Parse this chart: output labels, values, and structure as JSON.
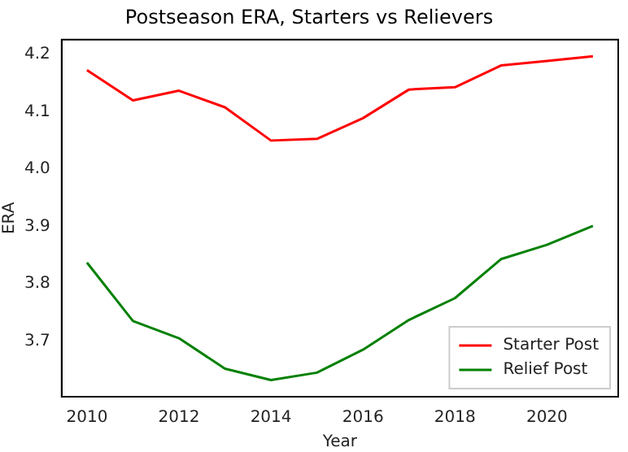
{
  "chart_data": {
    "type": "line",
    "title": "Postseason ERA, Starters vs Relievers",
    "xlabel": "Year",
    "ylabel": "ERA",
    "x": [
      2010,
      2011,
      2012,
      2013,
      2014,
      2015,
      2016,
      2017,
      2018,
      2019,
      2020,
      2021
    ],
    "series": [
      {
        "name": "Starter Post",
        "color": "#ff0000",
        "values": [
          4.173,
          4.12,
          4.137,
          4.108,
          4.05,
          4.053,
          4.089,
          4.139,
          4.143,
          4.181,
          4.189,
          4.197
        ]
      },
      {
        "name": "Relief Post",
        "color": "#008000",
        "values": [
          3.837,
          3.735,
          3.705,
          3.652,
          3.632,
          3.645,
          3.685,
          3.737,
          3.775,
          3.843,
          3.868,
          3.901
        ]
      }
    ],
    "xlim": [
      2009.45,
      2021.55
    ],
    "xticks": [
      2010,
      2012,
      2014,
      2016,
      2018,
      2020
    ],
    "ylim": [
      3.603,
      4.226
    ],
    "yticks": [
      {
        "value": 3.7,
        "label": "3.7"
      },
      {
        "value": 3.8,
        "label": "3.8"
      },
      {
        "value": 3.9,
        "label": "3.9"
      },
      {
        "value": 4,
        "label": "4.0"
      },
      {
        "value": 4.1,
        "label": "4.1"
      },
      {
        "value": 4.2,
        "label": "4.2"
      }
    ],
    "legend": "bottom right",
    "grid": false,
    "marker": "none",
    "line_style": "solid"
  }
}
